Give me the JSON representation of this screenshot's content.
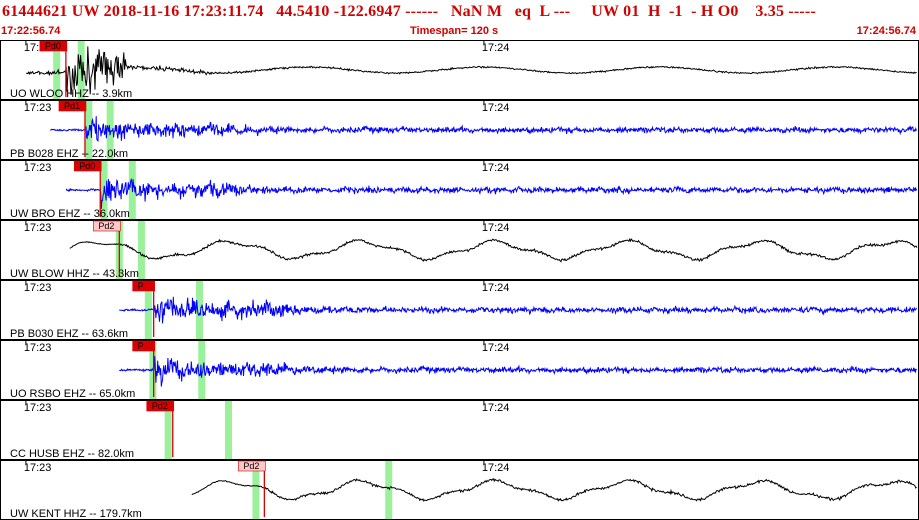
{
  "header": {
    "title": "61444621 UW 2018-11-16 17:23:11.74   44.5410 -122.6947 ------   NaN M   eq  L ---     UW 01  H  -1  - H O0    3.35 -----",
    "start_time": "17:22:56.74",
    "timespan": "Timespan= 120 s",
    "end_time": "17:24:56.74"
  },
  "chart_data": {
    "type": "line",
    "title": "",
    "xlabel": "",
    "ylabel": "",
    "x_start": "17:22:56.74",
    "x_end": "17:24:56.74",
    "xlim": [
      0,
      120
    ],
    "x_unit": "s",
    "tick_labels": [
      "17:23",
      "17:24"
    ],
    "tick_times": [
      3.26,
      63.26
    ],
    "grid": false,
    "legend": "none",
    "colors": {
      "black": "#000000",
      "blue": "#0000ff",
      "pick": "#d80000",
      "pick_light": "#ffc8c8",
      "window": "#90ee90"
    },
    "traces": [
      {
        "label": "UO WLOO HHZ -- 3.9km",
        "color": "black",
        "start": 3.3,
        "amplitude": "high",
        "pick": {
          "label": "Pd0",
          "time": 8.5,
          "light": false
        },
        "windows": [
          7.3,
          10.5
        ]
      },
      {
        "label": "PB B028 EHZ -- 22.0km",
        "color": "blue",
        "start": 6.5,
        "amplitude": "medium",
        "pick": {
          "label": "Pd1",
          "time": 11.0,
          "light": false
        },
        "windows": [
          11.5,
          14.3
        ]
      },
      {
        "label": "UW BRO EHZ -- 36.0km",
        "color": "blue",
        "start": 8.5,
        "amplitude": "medium",
        "pick": {
          "label": "Pd0",
          "time": 13.0,
          "light": false
        },
        "windows": [
          13.5,
          17.2
        ]
      },
      {
        "label": "UW BLOW HHZ -- 43.3km",
        "color": "black",
        "start": 9.0,
        "amplitude": "low",
        "pick": {
          "label": "Pd2",
          "time": 15.5,
          "light": true
        },
        "windows": [
          15.5,
          18.4
        ]
      },
      {
        "label": "PB B030 EHZ -- 63.6km",
        "color": "blue",
        "start": 15.5,
        "amplitude": "medium",
        "pick": {
          "label": "P",
          "time": 20.0,
          "light": false
        },
        "windows": [
          19.3,
          26.0
        ]
      },
      {
        "label": "UO RSBO EHZ -- 65.0km",
        "color": "blue",
        "start": 15.5,
        "amplitude": "medium",
        "pick": {
          "label": "P",
          "time": 20.0,
          "light": false
        },
        "windows": [
          19.9,
          26.3
        ]
      },
      {
        "label": "CC HUSB EHZ -- 82.0km",
        "color": "black",
        "start": null,
        "amplitude": "none",
        "pick": {
          "label": "Pd2",
          "time": 22.5,
          "light": false
        },
        "windows": [
          21.9,
          29.8
        ]
      },
      {
        "label": "UW KENT HHZ -- 179.7km",
        "color": "black",
        "start": 25.0,
        "amplitude": "low",
        "pick": {
          "label": "Pd2",
          "time": 34.5,
          "light": true
        },
        "windows": [
          33.4,
          50.8
        ]
      }
    ]
  }
}
